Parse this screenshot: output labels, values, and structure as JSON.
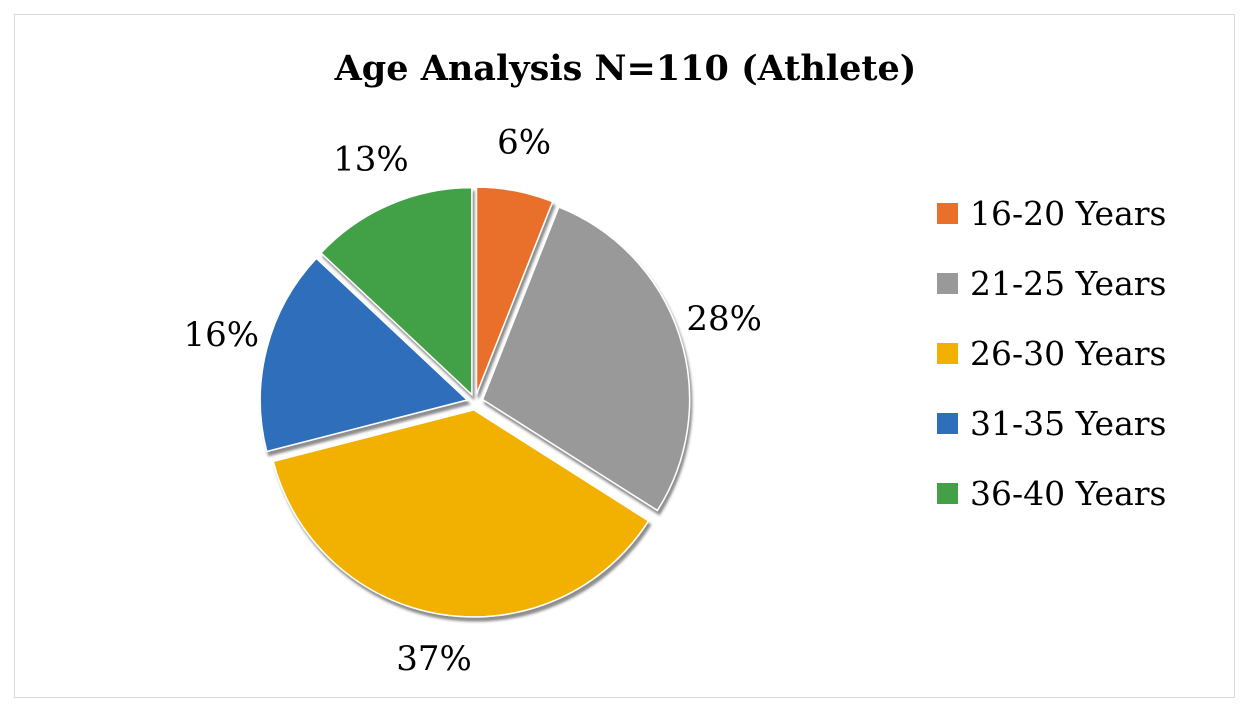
{
  "chart_data": {
    "type": "pie",
    "title": "Age Analysis N=110 (Athlete)",
    "slices": [
      {
        "label": "16-20 Years",
        "value": 6,
        "display": "6%",
        "color": "#E8702A"
      },
      {
        "label": "21-25 Years",
        "value": 28,
        "display": "28%",
        "color": "#999999"
      },
      {
        "label": "26-30 Years",
        "value": 37,
        "display": "37%",
        "color": "#F2B100"
      },
      {
        "label": "31-35 Years",
        "value": 16,
        "display": "16%",
        "color": "#2F6EBA"
      },
      {
        "label": "36-40 Years",
        "value": 13,
        "display": "13%",
        "color": "#43A047"
      }
    ],
    "legend_position": "right",
    "exploded": true
  }
}
